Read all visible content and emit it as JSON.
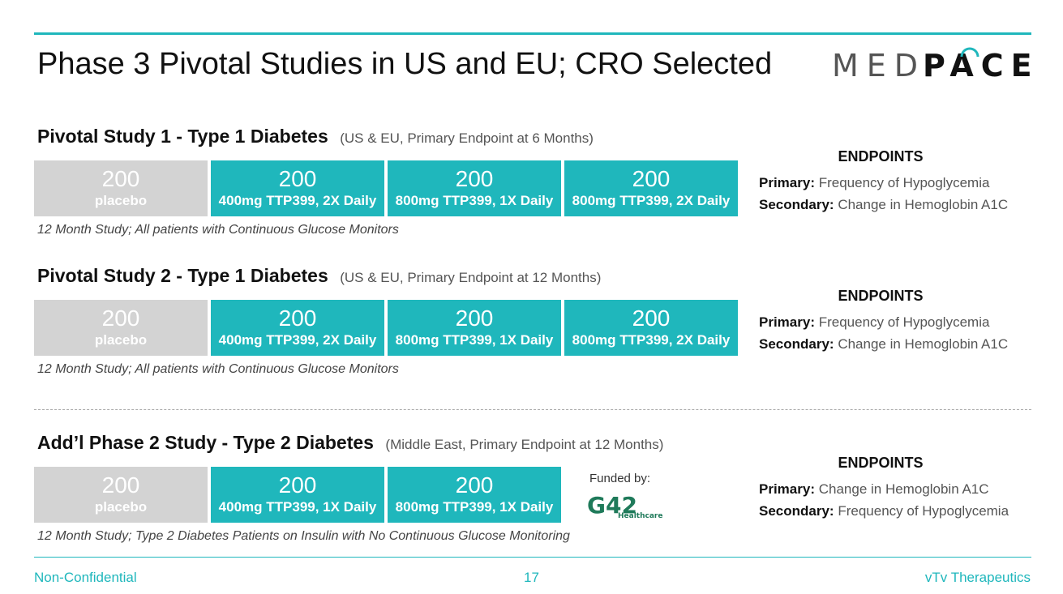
{
  "slide": {
    "title": "Phase 3 Pivotal Studies in US and EU; CRO Selected",
    "logo": {
      "part1": "MED",
      "part2": "PACE"
    }
  },
  "studies": [
    {
      "name": "Pivotal Study 1 - Type 1 Diabetes",
      "meta": "(US & EU, Primary Endpoint at 6 Months)",
      "arms": [
        {
          "n": "200",
          "label": "placebo"
        },
        {
          "n": "200",
          "label": "400mg TTP399, 2X Daily"
        },
        {
          "n": "200",
          "label": "800mg TTP399, 1X Daily"
        },
        {
          "n": "200",
          "label": "800mg TTP399, 2X Daily"
        }
      ],
      "note": "12 Month Study; All patients with Continuous Glucose Monitors",
      "endpoints": {
        "title": "ENDPOINTS",
        "primary_label": "Primary:",
        "primary": "Frequency of Hypoglycemia",
        "secondary_label": "Secondary:",
        "secondary": "Change in Hemoglobin A1C"
      }
    },
    {
      "name": "Pivotal Study 2 - Type 1 Diabetes",
      "meta": "(US & EU, Primary Endpoint at 12 Months)",
      "arms": [
        {
          "n": "200",
          "label": "placebo"
        },
        {
          "n": "200",
          "label": "400mg TTP399, 2X Daily"
        },
        {
          "n": "200",
          "label": "800mg TTP399, 1X Daily"
        },
        {
          "n": "200",
          "label": "800mg TTP399, 2X Daily"
        }
      ],
      "note": "12 Month Study; All patients with Continuous Glucose Monitors",
      "endpoints": {
        "title": "ENDPOINTS",
        "primary_label": "Primary:",
        "primary": "Frequency of Hypoglycemia",
        "secondary_label": "Secondary:",
        "secondary": "Change in Hemoglobin A1C"
      }
    },
    {
      "name": "Add’l Phase 2 Study - Type 2 Diabetes",
      "meta": "(Middle East, Primary Endpoint at 12 Months)",
      "arms": [
        {
          "n": "200",
          "label": "placebo"
        },
        {
          "n": "200",
          "label": "400mg TTP399, 1X Daily"
        },
        {
          "n": "200",
          "label": "800mg TTP399, 1X Daily"
        }
      ],
      "note": "12 Month Study; Type 2 Diabetes Patients on Insulin with No Continuous Glucose Monitoring",
      "funded_by": "Funded by:",
      "funder_logo": {
        "mark": "G42",
        "sub": "Healthcare"
      },
      "endpoints": {
        "title": "ENDPOINTS",
        "primary_label": "Primary:",
        "primary": "Change in Hemoglobin A1C",
        "secondary_label": "Secondary:",
        "secondary": "Frequency of Hypoglycemia"
      }
    }
  ],
  "footer": {
    "left": "Non-Confidential",
    "page": "17",
    "right": "vTv Therapeutics"
  },
  "colors": {
    "teal": "#1fb7bc",
    "placebo_gray": "#d3d3d3",
    "funder_green": "#1f7a5a"
  }
}
